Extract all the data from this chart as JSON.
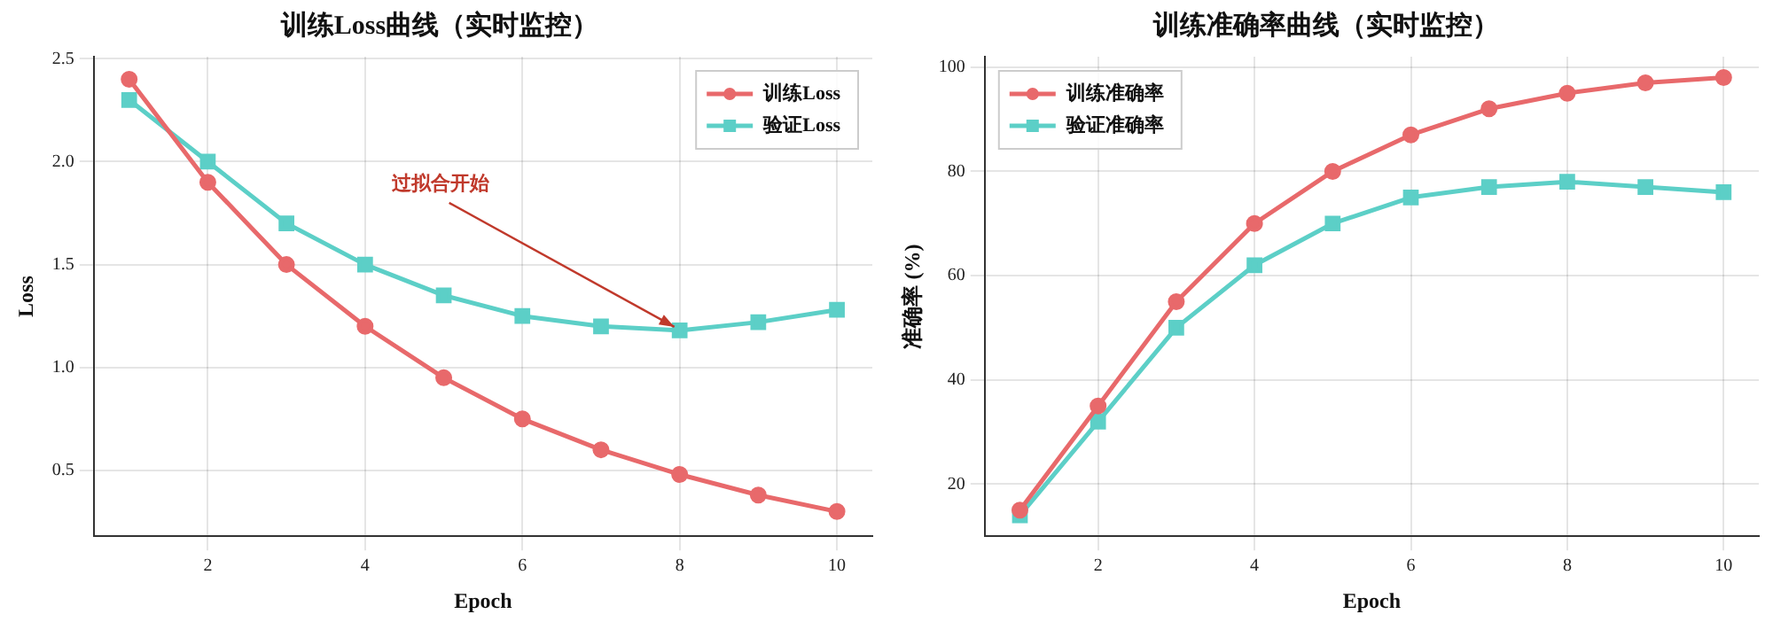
{
  "chart_data": [
    {
      "type": "line",
      "title": "训练Loss曲线（实时监控）",
      "xlabel": "Epoch",
      "ylabel": "Loss",
      "x": [
        1,
        2,
        3,
        4,
        5,
        6,
        7,
        8,
        9,
        10
      ],
      "xlim": [
        0.55,
        10.45
      ],
      "xticks": [
        2,
        4,
        6,
        8,
        10
      ],
      "ylim": [
        0.18,
        2.51
      ],
      "yticks": [
        0.5,
        {
          "value": 1,
          "label": "1.0"
        },
        1.5,
        {
          "value": 2,
          "label": "2.0"
        },
        2.5
      ],
      "grid": true,
      "legend": "top right",
      "line_style": "solid",
      "series": [
        {
          "name": "训练Loss",
          "color": "#e8696b",
          "marker": "circle",
          "values": [
            2.4,
            1.9,
            1.5,
            1.2,
            0.95,
            0.75,
            0.6,
            0.48,
            0.38,
            0.3
          ]
        },
        {
          "name": "验证Loss",
          "color": "#5ccfc7",
          "marker": "square",
          "values": [
            2.3,
            2.0,
            1.7,
            1.5,
            1.35,
            1.25,
            1.2,
            1.18,
            1.22,
            1.28
          ]
        }
      ],
      "annotations": [
        {
          "text": "过拟合开始",
          "x": 8,
          "y": 1.18
        }
      ]
    },
    {
      "type": "line",
      "title": "训练准确率曲线（实时监控）",
      "xlabel": "Epoch",
      "ylabel": "准确率 (%)",
      "x": [
        1,
        2,
        3,
        4,
        5,
        6,
        7,
        8,
        9,
        10
      ],
      "xlim": [
        0.55,
        10.45
      ],
      "xticks": [
        2,
        4,
        6,
        8,
        10
      ],
      "ylim": [
        10,
        102
      ],
      "yticks": [
        20,
        40,
        60,
        80,
        100
      ],
      "grid": true,
      "legend": "top left",
      "line_style": "solid",
      "series": [
        {
          "name": "训练准确率",
          "color": "#e8696b",
          "marker": "circle",
          "values": [
            15,
            35,
            55,
            70,
            80,
            87,
            92,
            95,
            97,
            98
          ]
        },
        {
          "name": "验证准确率",
          "color": "#5ccfc7",
          "marker": "square",
          "values": [
            14,
            32,
            50,
            62,
            70,
            75,
            77,
            78,
            77,
            76
          ]
        }
      ]
    }
  ]
}
